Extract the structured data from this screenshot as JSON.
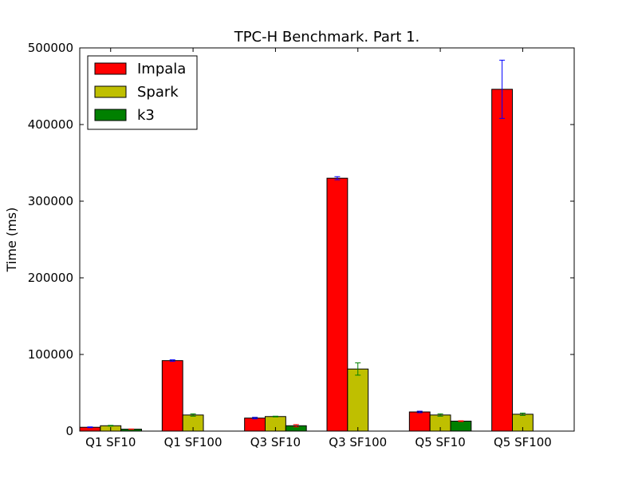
{
  "chart_data": {
    "type": "bar",
    "title": "TPC-H Benchmark. Part 1.",
    "xlabel": "",
    "ylabel": "Time (ms)",
    "ylim": [
      0,
      500000
    ],
    "yticks": [
      "0",
      "100000",
      "200000",
      "300000",
      "400000",
      "500000"
    ],
    "categories": [
      "Q1 SF10",
      "Q1 SF100",
      "Q3 SF10",
      "Q3 SF100",
      "Q5 SF10",
      "Q5 SF100"
    ],
    "legend_position": "top-left",
    "grid": false,
    "series": [
      {
        "name": "Impala",
        "color": "#ff0000",
        "error_color": "#0000ff",
        "values": [
          5000,
          92000,
          17000,
          330000,
          25000,
          446000
        ],
        "errors": [
          500,
          1000,
          1000,
          2000,
          1000,
          38000
        ]
      },
      {
        "name": "Spark",
        "color": "#bfbf00",
        "error_color": "#008000",
        "values": [
          7000,
          21000,
          19000,
          81000,
          21000,
          22000
        ],
        "errors": [
          500,
          1500,
          500,
          8000,
          1500,
          1500
        ]
      },
      {
        "name": "k3",
        "color": "#008000",
        "error_color": "#ff0000",
        "values": [
          2500,
          0,
          7000,
          0,
          13000,
          0
        ],
        "errors": [
          300,
          0,
          1500,
          0,
          500,
          0
        ]
      }
    ]
  }
}
